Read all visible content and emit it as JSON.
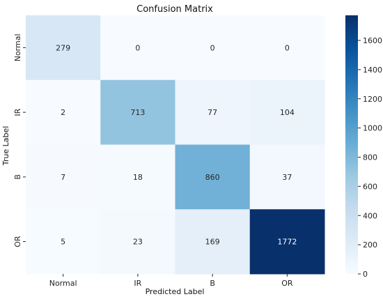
{
  "chart_data": {
    "type": "heatmap",
    "title": "Confusion Matrix",
    "xlabel": "Predicted Label",
    "ylabel": "True Label",
    "x_categories": [
      "Normal",
      "IR",
      "B",
      "OR"
    ],
    "y_categories": [
      "Normal",
      "IR",
      "B",
      "OR"
    ],
    "values": [
      [
        279,
        0,
        0,
        0
      ],
      [
        2,
        713,
        77,
        104
      ],
      [
        7,
        18,
        860,
        37
      ],
      [
        5,
        23,
        169,
        1772
      ]
    ],
    "colormap": "Blues",
    "color_range": [
      0,
      1772
    ],
    "colorbar_ticks": [
      0,
      200,
      400,
      600,
      800,
      1000,
      1200,
      1400,
      1600
    ]
  }
}
